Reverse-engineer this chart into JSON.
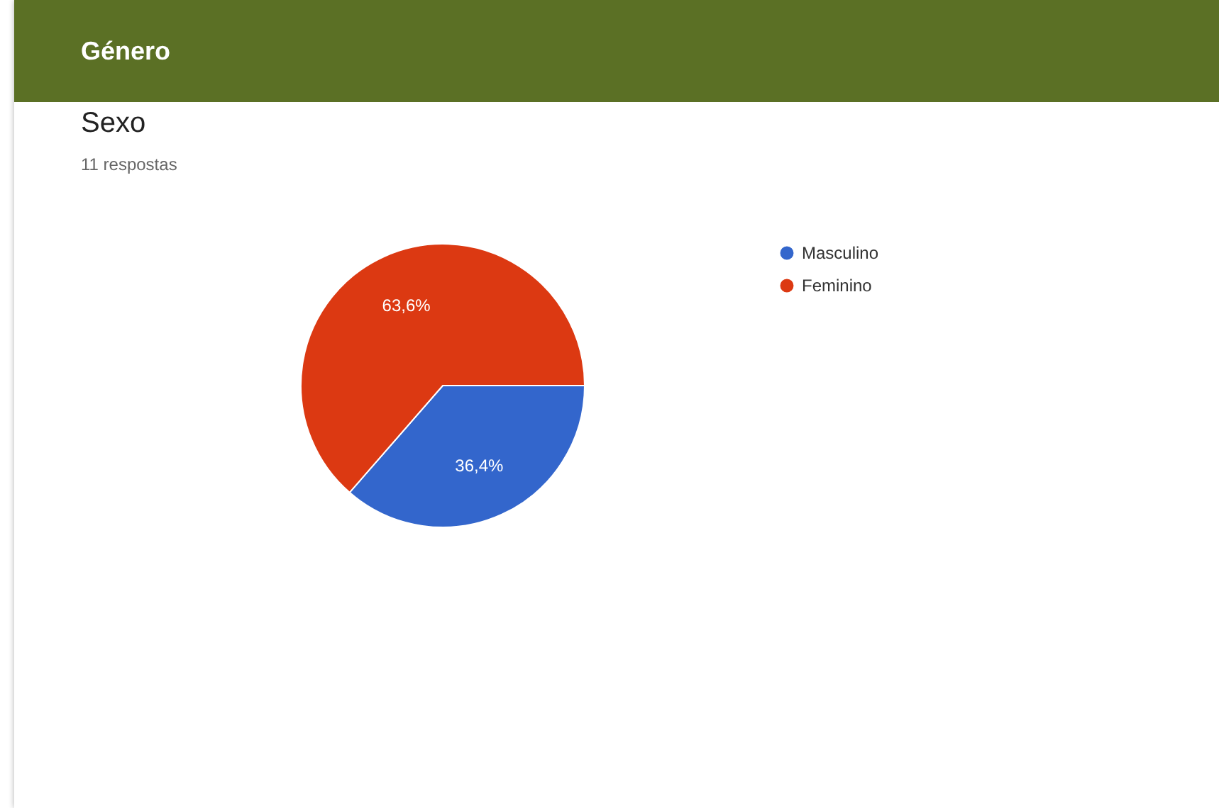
{
  "chart_data": {
    "type": "pie",
    "title": "Sexo",
    "subtitle": "11 respostas",
    "annotations": [
      "Género"
    ],
    "categories": [
      "Masculino",
      "Feminino"
    ],
    "values": [
      36.4,
      63.6
    ],
    "colors": [
      "#3366cc",
      "#dc3912"
    ],
    "value_labels": [
      "36,4%",
      "63,6%"
    ],
    "legend": "right"
  }
}
